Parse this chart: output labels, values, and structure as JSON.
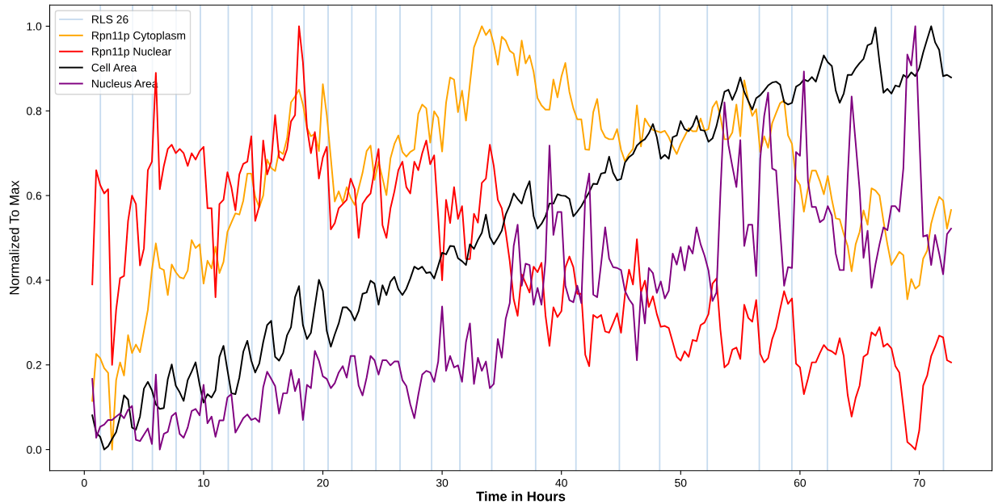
{
  "chart_data": {
    "type": "line",
    "xlabel": "Time in Hours",
    "ylabel": "Normalized To Max",
    "xlim": [
      -2.9,
      76.1
    ],
    "ylim": [
      -0.05,
      1.05
    ],
    "xticks": [
      0,
      10,
      20,
      30,
      40,
      50,
      60,
      70
    ],
    "yticks": [
      {
        "value": 0,
        "label": "0.0"
      },
      0.2,
      0.4,
      0.6,
      0.8,
      {
        "value": 1,
        "label": "1.0"
      }
    ],
    "grid": false,
    "legend": "top left",
    "x": [
      0.67,
      1,
      1.33,
      1.67,
      2,
      2.33,
      2.67,
      3,
      3.33,
      3.67,
      4,
      4.33,
      4.67,
      5,
      5.33,
      5.67,
      6,
      6.33,
      6.67,
      7,
      7.33,
      7.67,
      8,
      8.33,
      8.67,
      9,
      9.33,
      9.67,
      10,
      10.33,
      10.67,
      11,
      11.33,
      11.67,
      12,
      12.33,
      12.67,
      13,
      13.33,
      13.67,
      14,
      14.33,
      14.67,
      15,
      15.33,
      15.67,
      16,
      16.33,
      16.67,
      17,
      17.33,
      17.67,
      18,
      18.33,
      18.67,
      19,
      19.33,
      19.67,
      20,
      20.33,
      20.67,
      21,
      21.33,
      21.67,
      22,
      22.33,
      22.67,
      23,
      23.33,
      23.67,
      24,
      24.33,
      24.67,
      25,
      25.33,
      25.67,
      26,
      26.33,
      26.67,
      27,
      27.33,
      27.67,
      28,
      28.33,
      28.67,
      29,
      29.33,
      29.67,
      30,
      30.33,
      30.67,
      31,
      31.33,
      31.67,
      32,
      32.33,
      32.67,
      33,
      33.33,
      33.67,
      34,
      34.33,
      34.67,
      35,
      35.33,
      35.67,
      36,
      36.33,
      36.67,
      37,
      37.33,
      37.67,
      38,
      38.33,
      38.67,
      39,
      39.33,
      39.67,
      40,
      40.33,
      40.67,
      41,
      41.33,
      41.67,
      42,
      42.33,
      42.67,
      43,
      43.33,
      43.67,
      44,
      44.33,
      44.67,
      45,
      45.33,
      45.67,
      46,
      46.33,
      46.67,
      47,
      47.33,
      47.67,
      48,
      48.33,
      48.67,
      49,
      49.33,
      49.67,
      50,
      50.33,
      50.67,
      51,
      51.33,
      51.67,
      52,
      52.33,
      52.67,
      53,
      53.33,
      53.67,
      54,
      54.33,
      54.67,
      55,
      55.33,
      55.67,
      56,
      56.33,
      56.67,
      57,
      57.33,
      57.67,
      58,
      58.33,
      58.67,
      59,
      59.33,
      59.67,
      60,
      60.33,
      60.67,
      61,
      61.33,
      61.67,
      62,
      62.33,
      62.67,
      63,
      63.33,
      63.67,
      64,
      64.33,
      64.67,
      65,
      65.33,
      65.67,
      66,
      66.33,
      66.67,
      67,
      67.33,
      67.67,
      68,
      68.33,
      68.67,
      69,
      69.33,
      69.67,
      70,
      70.33,
      70.67,
      71,
      71.33,
      71.67,
      72,
      72.33,
      72.67
    ],
    "ref_lines": [
      {
        "axis": "x",
        "value": 1.35,
        "label": "RLS 26",
        "color": "#c6dbef"
      },
      {
        "axis": "x",
        "value": 4.05,
        "color": "#c6dbef"
      },
      {
        "axis": "x",
        "value": 5.71,
        "color": "#c6dbef"
      },
      {
        "axis": "x",
        "value": 7.7,
        "color": "#c6dbef"
      },
      {
        "axis": "x",
        "value": 9.73,
        "color": "#c6dbef"
      },
      {
        "axis": "x",
        "value": 12.07,
        "color": "#c6dbef"
      },
      {
        "axis": "x",
        "value": 14.05,
        "color": "#c6dbef"
      },
      {
        "axis": "x",
        "value": 15.74,
        "color": "#c6dbef"
      },
      {
        "axis": "x",
        "value": 18.42,
        "color": "#c6dbef"
      },
      {
        "axis": "x",
        "value": 20.44,
        "color": "#c6dbef"
      },
      {
        "axis": "x",
        "value": 22.43,
        "color": "#c6dbef"
      },
      {
        "axis": "x",
        "value": 24.45,
        "color": "#c6dbef"
      },
      {
        "axis": "x",
        "value": 26.47,
        "color": "#c6dbef"
      },
      {
        "axis": "x",
        "value": 29.12,
        "color": "#c6dbef"
      },
      {
        "axis": "x",
        "value": 31.49,
        "color": "#c6dbef"
      },
      {
        "axis": "x",
        "value": 34.16,
        "color": "#c6dbef"
      },
      {
        "axis": "x",
        "value": 37.84,
        "color": "#c6dbef"
      },
      {
        "axis": "x",
        "value": 41.22,
        "color": "#c6dbef"
      },
      {
        "axis": "x",
        "value": 44.86,
        "color": "#c6dbef"
      },
      {
        "axis": "x",
        "value": 48.24,
        "color": "#c6dbef"
      },
      {
        "axis": "x",
        "value": 52.23,
        "color": "#c6dbef"
      },
      {
        "axis": "x",
        "value": 56.59,
        "color": "#c6dbef"
      },
      {
        "axis": "x",
        "value": 59.32,
        "color": "#c6dbef"
      },
      {
        "axis": "x",
        "value": 62.3,
        "color": "#c6dbef"
      },
      {
        "axis": "x",
        "value": 67.67,
        "color": "#c6dbef"
      },
      {
        "axis": "x",
        "value": 72.03,
        "color": "#c6dbef"
      }
    ],
    "series": [
      {
        "name": "Rpn11p Cytoplasm",
        "color": "#ffa500",
        "values": [
          0.115,
          0.226,
          0.216,
          0.192,
          0.181,
          0.0,
          0.164,
          0.206,
          0.175,
          0.27,
          0.228,
          0.248,
          0.23,
          0.28,
          0.33,
          0.424,
          0.487,
          0.429,
          0.424,
          0.365,
          0.437,
          0.419,
          0.407,
          0.404,
          0.423,
          0.495,
          0.476,
          0.485,
          0.392,
          0.446,
          0.428,
          0.479,
          0.417,
          0.443,
          0.514,
          0.536,
          0.558,
          0.555,
          0.588,
          0.652,
          0.652,
          0.597,
          0.572,
          0.6,
          0.685,
          0.665,
          0.658,
          0.705,
          0.698,
          0.735,
          0.82,
          0.834,
          0.85,
          0.815,
          0.76,
          0.74,
          0.746,
          0.705,
          0.863,
          0.79,
          0.688,
          0.586,
          0.61,
          0.583,
          0.62,
          0.595,
          0.578,
          0.617,
          0.654,
          0.705,
          0.718,
          0.637,
          0.68,
          0.641,
          0.601,
          0.688,
          0.722,
          0.742,
          0.703,
          0.692,
          0.703,
          0.709,
          0.793,
          0.815,
          0.806,
          0.725,
          0.799,
          0.784,
          0.704,
          0.819,
          0.879,
          0.874,
          0.797,
          0.848,
          0.777,
          0.864,
          0.95,
          0.975,
          1.0,
          0.979,
          0.992,
          0.958,
          0.909,
          0.975,
          0.966,
          0.942,
          0.935,
          0.884,
          0.966,
          0.912,
          0.931,
          0.892,
          0.83,
          0.813,
          0.803,
          0.803,
          0.874,
          0.832,
          0.881,
          0.913,
          0.845,
          0.806,
          0.78,
          0.78,
          0.709,
          0.708,
          0.797,
          0.828,
          0.757,
          0.738,
          0.733,
          0.733,
          0.757,
          0.708,
          0.681,
          0.698,
          0.71,
          0.813,
          0.716,
          0.782,
          0.766,
          0.755,
          0.752,
          0.749,
          0.753,
          0.738,
          0.716,
          0.698,
          0.722,
          0.74,
          0.759,
          0.752,
          0.752,
          0.782,
          0.753,
          0.757,
          0.808,
          0.823,
          0.786,
          0.733,
          0.733,
          0.749,
          0.815,
          0.74,
          0.872,
          0.825,
          0.788,
          0.804,
          0.703,
          0.74,
          0.713,
          0.771,
          0.795,
          0.818,
          0.825,
          0.742,
          0.722,
          0.639,
          0.625,
          0.562,
          0.617,
          0.659,
          0.659,
          0.634,
          0.603,
          0.646,
          0.591,
          0.546,
          0.544,
          0.509,
          0.481,
          0.421,
          0.485,
          0.514,
          0.565,
          0.531,
          0.617,
          0.612,
          0.6,
          0.54,
          0.485,
          0.436,
          0.451,
          0.467,
          0.459,
          0.355,
          0.403,
          0.38,
          0.388,
          0.451,
          0.47,
          0.534,
          0.568,
          0.597,
          0.588,
          0.522,
          0.566
        ]
      },
      {
        "name": "Rpn11p Nuclear",
        "color": "#ff0000",
        "values": [
          0.39,
          0.66,
          0.625,
          0.605,
          0.615,
          0.2,
          0.33,
          0.405,
          0.41,
          0.54,
          0.6,
          0.58,
          0.435,
          0.475,
          0.66,
          0.68,
          0.89,
          0.615,
          0.67,
          0.71,
          0.72,
          0.7,
          0.71,
          0.7,
          0.67,
          0.7,
          0.685,
          0.705,
          0.715,
          0.57,
          0.57,
          0.36,
          0.58,
          0.59,
          0.655,
          0.62,
          0.565,
          0.65,
          0.675,
          0.68,
          0.74,
          0.54,
          0.575,
          0.73,
          0.65,
          0.68,
          0.79,
          0.69,
          0.683,
          0.71,
          0.775,
          0.79,
          1.0,
          0.915,
          0.76,
          0.7,
          0.75,
          0.64,
          0.69,
          0.715,
          0.52,
          0.535,
          0.57,
          0.58,
          0.59,
          0.64,
          0.615,
          0.5,
          0.58,
          0.595,
          0.605,
          0.66,
          0.71,
          0.53,
          0.5,
          0.57,
          0.61,
          0.66,
          0.68,
          0.62,
          0.605,
          0.68,
          0.66,
          0.7,
          0.73,
          0.674,
          0.695,
          0.55,
          0.4,
          0.59,
          0.535,
          0.62,
          0.545,
          0.575,
          0.45,
          0.45,
          0.557,
          0.536,
          0.63,
          0.64,
          0.72,
          0.67,
          0.59,
          0.57,
          0.514,
          0.445,
          0.355,
          0.316,
          0.414,
          0.393,
          0.371,
          0.432,
          0.419,
          0.441,
          0.316,
          0.245,
          0.336,
          0.313,
          0.327,
          0.43,
          0.456,
          0.431,
          0.368,
          0.368,
          0.224,
          0.197,
          0.318,
          0.311,
          0.318,
          0.279,
          0.276,
          0.298,
          0.322,
          0.276,
          0.366,
          0.425,
          0.39,
          0.497,
          0.371,
          0.399,
          0.337,
          0.362,
          0.32,
          0.29,
          0.292,
          0.287,
          0.254,
          0.219,
          0.21,
          0.232,
          0.219,
          0.259,
          0.256,
          0.294,
          0.3,
          0.32,
          0.392,
          0.404,
          0.283,
          0.194,
          0.203,
          0.236,
          0.241,
          0.214,
          0.342,
          0.311,
          0.302,
          0.353,
          0.226,
          0.206,
          0.216,
          0.261,
          0.287,
          0.331,
          0.374,
          0.344,
          0.357,
          0.203,
          0.194,
          0.131,
          0.167,
          0.206,
          0.206,
          0.228,
          0.247,
          0.236,
          0.232,
          0.225,
          0.263,
          0.221,
          0.129,
          0.078,
          0.122,
          0.151,
          0.219,
          0.226,
          0.277,
          0.269,
          0.289,
          0.243,
          0.25,
          0.239,
          0.197,
          0.182,
          0.1,
          0.018,
          0.01,
          0.0,
          0.045,
          0.151,
          0.175,
          0.221,
          0.243,
          0.269,
          0.265,
          0.211,
          0.206
        ]
      },
      {
        "name": "Cell Area",
        "color": "#000000",
        "values": [
          0.081,
          0.04,
          0.03,
          0.0,
          0.008,
          0.025,
          0.041,
          0.078,
          0.128,
          0.118,
          0.052,
          0.047,
          0.078,
          0.144,
          0.16,
          0.14,
          0.107,
          0.096,
          0.098,
          0.166,
          0.201,
          0.151,
          0.135,
          0.115,
          0.164,
          0.184,
          0.206,
          0.153,
          0.111,
          0.131,
          0.123,
          0.14,
          0.219,
          0.245,
          0.188,
          0.133,
          0.131,
          0.17,
          0.231,
          0.257,
          0.21,
          0.182,
          0.203,
          0.254,
          0.294,
          0.304,
          0.219,
          0.21,
          0.228,
          0.27,
          0.289,
          0.36,
          0.386,
          0.294,
          0.261,
          0.276,
          0.338,
          0.401,
          0.375,
          0.28,
          0.243,
          0.272,
          0.298,
          0.336,
          0.336,
          0.326,
          0.305,
          0.327,
          0.368,
          0.371,
          0.399,
          0.392,
          0.342,
          0.388,
          0.365,
          0.397,
          0.408,
          0.379,
          0.365,
          0.38,
          0.404,
          0.432,
          0.426,
          0.432,
          0.417,
          0.419,
          0.404,
          0.434,
          0.465,
          0.461,
          0.481,
          0.48,
          0.452,
          0.445,
          0.436,
          0.485,
          0.474,
          0.495,
          0.512,
          0.555,
          0.502,
          0.485,
          0.5,
          0.517,
          0.555,
          0.577,
          0.605,
          0.592,
          0.581,
          0.612,
          0.634,
          0.551,
          0.522,
          0.533,
          0.551,
          0.581,
          0.581,
          0.603,
          0.6,
          0.599,
          0.592,
          0.551,
          0.562,
          0.575,
          0.592,
          0.608,
          0.628,
          0.627,
          0.652,
          0.654,
          0.692,
          0.654,
          0.636,
          0.639,
          0.678,
          0.691,
          0.698,
          0.718,
          0.727,
          0.733,
          0.747,
          0.769,
          0.738,
          0.687,
          0.696,
          0.687,
          0.738,
          0.742,
          0.776,
          0.757,
          0.752,
          0.764,
          0.788,
          0.755,
          0.753,
          0.727,
          0.735,
          0.764,
          0.804,
          0.845,
          0.85,
          0.826,
          0.848,
          0.879,
          0.845,
          0.823,
          0.803,
          0.83,
          0.837,
          0.848,
          0.86,
          0.867,
          0.869,
          0.862,
          0.821,
          0.815,
          0.819,
          0.857,
          0.863,
          0.874,
          0.87,
          0.88,
          0.869,
          0.9,
          0.931,
          0.915,
          0.906,
          0.848,
          0.819,
          0.841,
          0.885,
          0.885,
          0.901,
          0.913,
          0.923,
          0.955,
          0.959,
          0.997,
          0.915,
          0.843,
          0.852,
          0.841,
          0.86,
          0.857,
          0.885,
          0.878,
          0.891,
          0.882,
          0.901,
          0.938,
          0.97,
          1.0,
          0.962,
          0.944,
          0.882,
          0.885,
          0.879
        ]
      },
      {
        "name": "Nucleus Area",
        "color": "#800080",
        "values": [
          0.167,
          0.028,
          0.054,
          0.059,
          0.07,
          0.07,
          0.078,
          0.085,
          0.074,
          0.094,
          0.103,
          0.023,
          0.02,
          0.035,
          0.05,
          0.013,
          0.177,
          0.0,
          0.037,
          0.042,
          0.079,
          0.087,
          0.037,
          0.028,
          0.052,
          0.091,
          0.096,
          0.081,
          0.153,
          0.062,
          0.078,
          0.03,
          0.069,
          0.069,
          0.123,
          0.131,
          0.04,
          0.057,
          0.074,
          0.083,
          0.07,
          0.074,
          0.065,
          0.147,
          0.184,
          0.167,
          0.15,
          0.085,
          0.133,
          0.133,
          0.188,
          0.138,
          0.167,
          0.07,
          0.153,
          0.145,
          0.233,
          0.21,
          0.173,
          0.167,
          0.145,
          0.157,
          0.182,
          0.197,
          0.17,
          0.221,
          0.221,
          0.151,
          0.128,
          0.17,
          0.221,
          0.211,
          0.177,
          0.211,
          0.211,
          0.199,
          0.208,
          0.208,
          0.164,
          0.15,
          0.107,
          0.074,
          0.129,
          0.177,
          0.186,
          0.182,
          0.16,
          0.208,
          0.338,
          0.186,
          0.221,
          0.194,
          0.199,
          0.16,
          0.254,
          0.298,
          0.155,
          0.217,
          0.186,
          0.208,
          0.145,
          0.155,
          0.261,
          0.217,
          0.309,
          0.346,
          0.481,
          0.531,
          0.387,
          0.439,
          0.436,
          0.342,
          0.382,
          0.342,
          0.448,
          0.718,
          0.507,
          0.561,
          0.561,
          0.387,
          0.353,
          0.348,
          0.387,
          0.346,
          0.6,
          0.652,
          0.366,
          0.36,
          0.439,
          0.525,
          0.451,
          0.431,
          0.429,
          0.424,
          0.375,
          0.355,
          0.342,
          0.211,
          0.373,
          0.298,
          0.429,
          0.417,
          0.37,
          0.397,
          0.357,
          0.375,
          0.463,
          0.437,
          0.478,
          0.423,
          0.481,
          0.463,
          0.525,
          0.485,
          0.458,
          0.423,
          0.351,
          0.371,
          0.606,
          0.82,
          0.72,
          0.669,
          0.62,
          0.731,
          0.481,
          0.531,
          0.531,
          0.41,
          0.687,
          0.788,
          0.843,
          0.664,
          0.659,
          0.522,
          0.387,
          0.431,
          0.429,
          0.703,
          0.694,
          0.893,
          0.634,
          0.573,
          0.573,
          0.537,
          0.544,
          0.575,
          0.553,
          0.463,
          0.424,
          0.424,
          0.643,
          0.834,
          0.724,
          0.614,
          0.453,
          0.517,
          0.382,
          0.437,
          0.485,
          0.525,
          0.518,
          0.575,
          0.575,
          0.562,
          0.665,
          0.933,
          0.907,
          1.0,
          0.746,
          0.503,
          0.507,
          0.436,
          0.507,
          0.463,
          0.414,
          0.509,
          0.522
        ]
      }
    ]
  }
}
